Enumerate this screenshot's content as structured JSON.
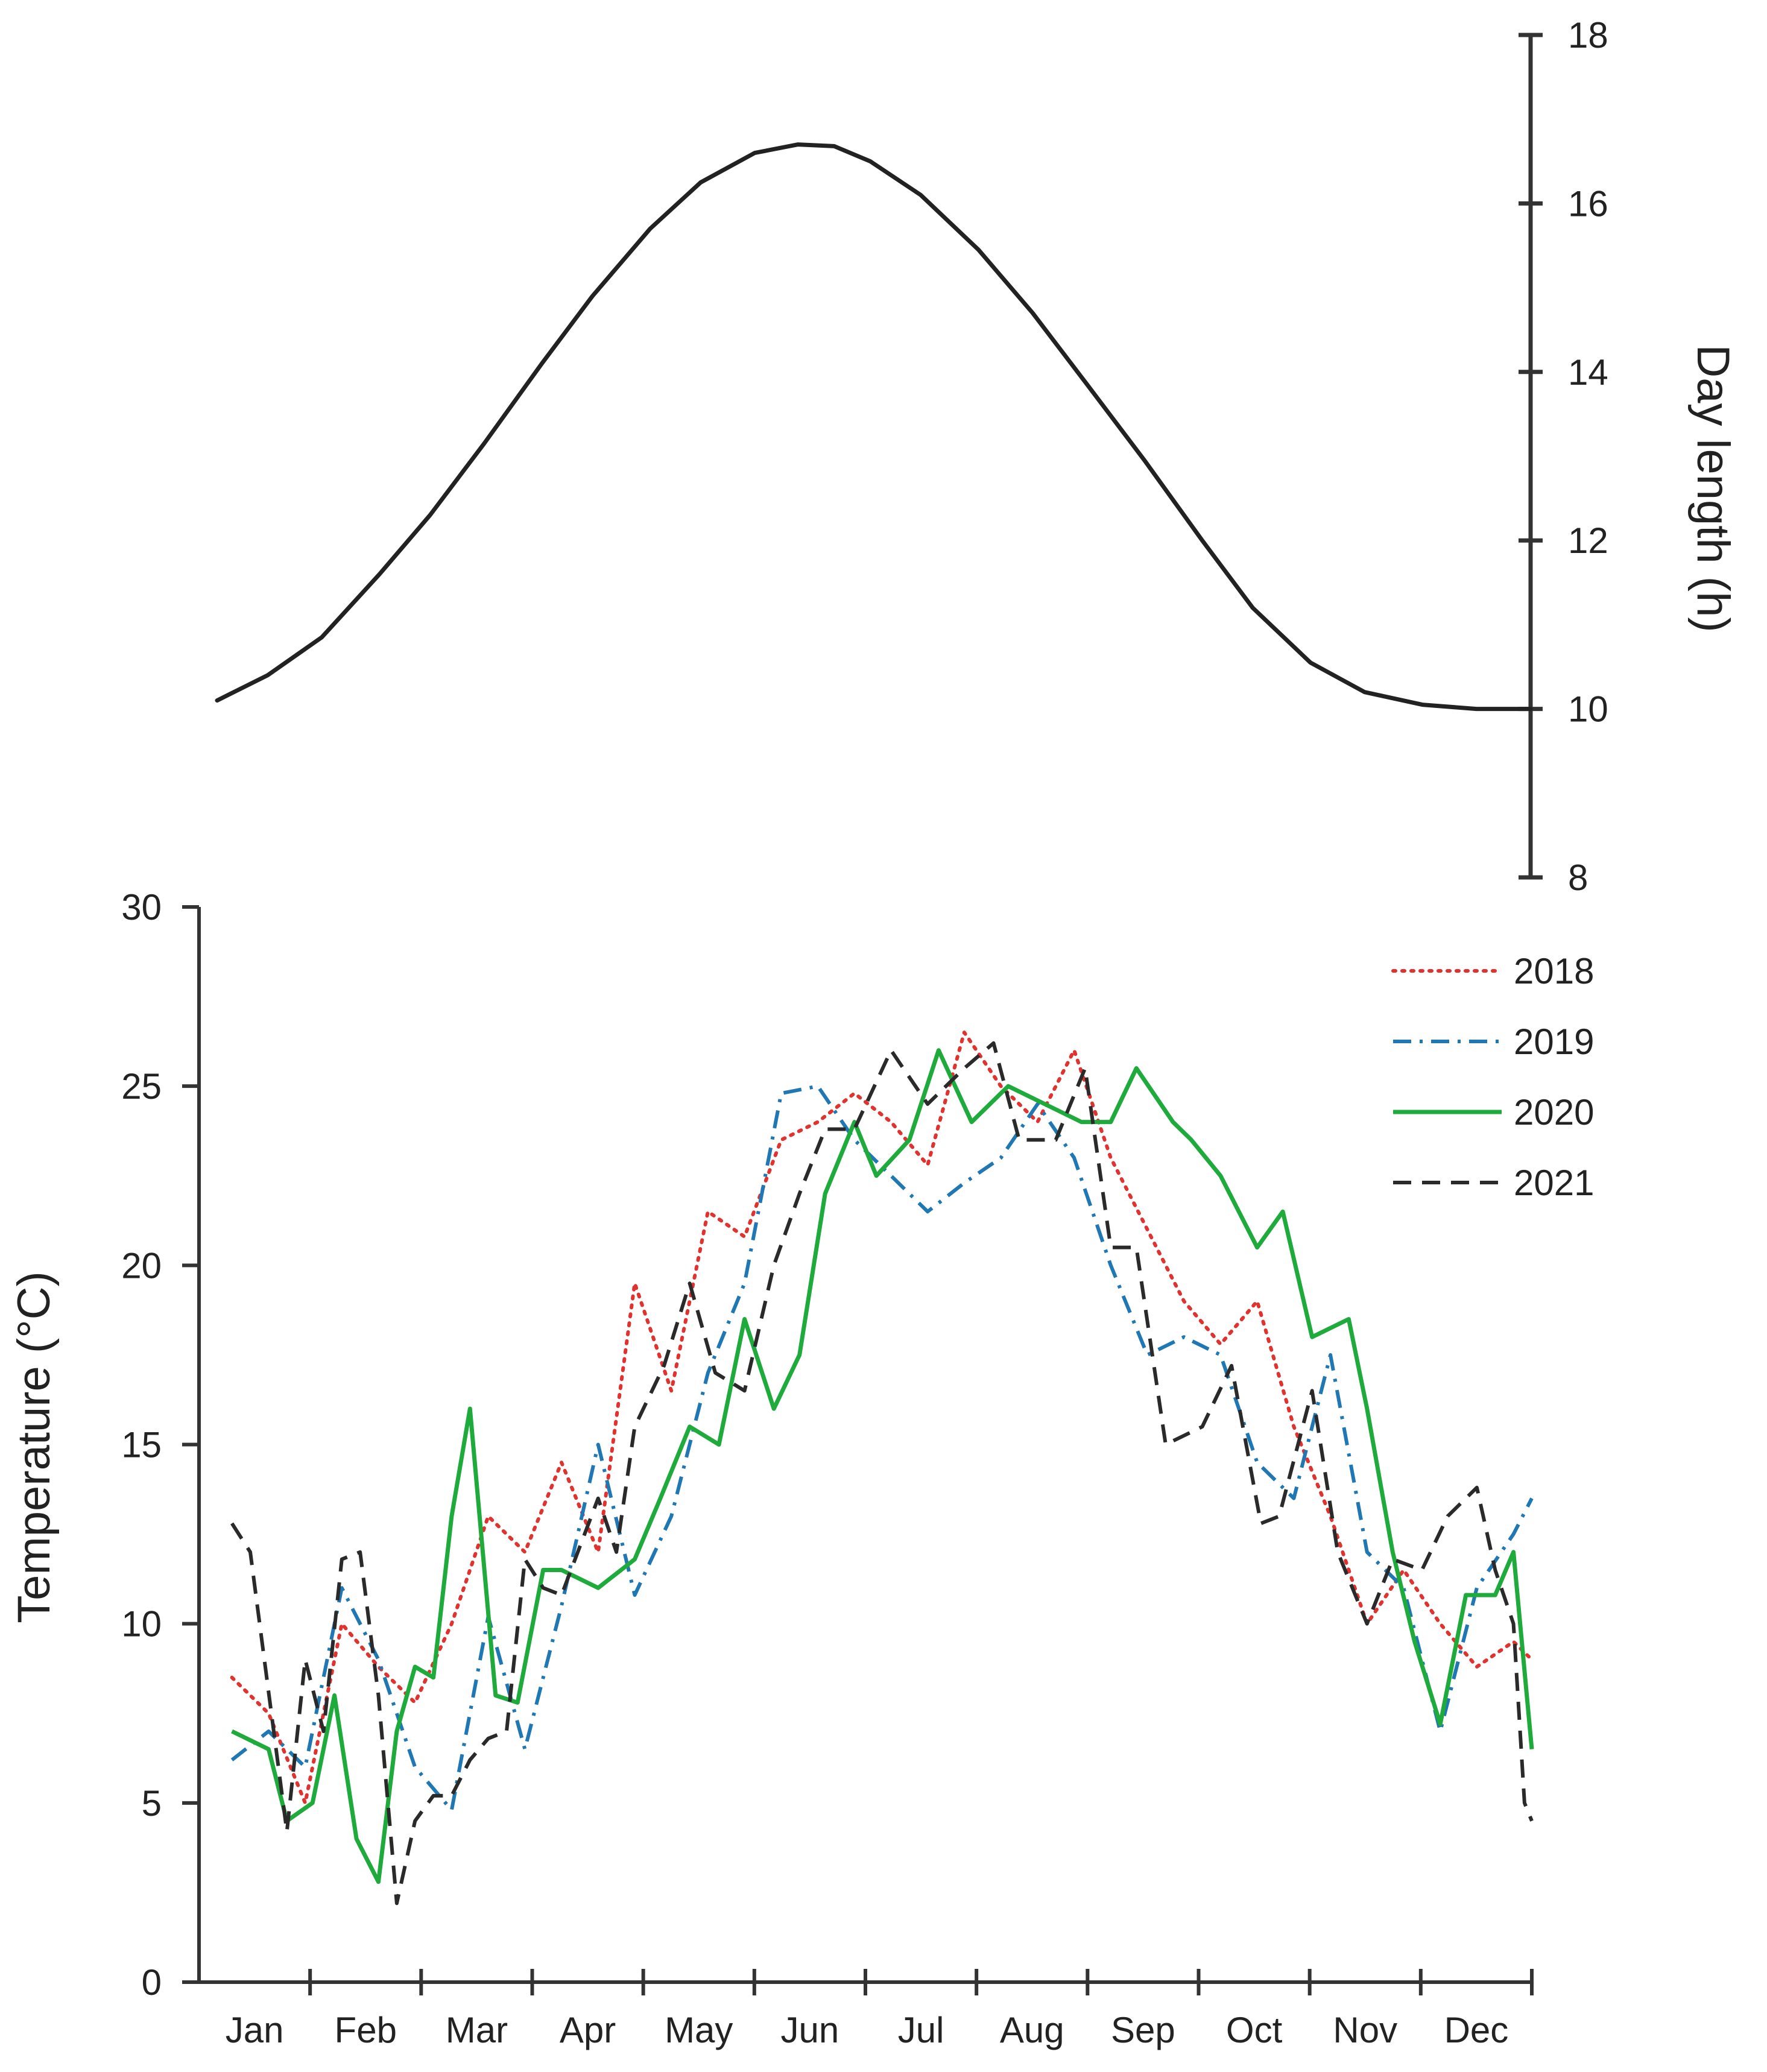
{
  "chart_data": [
    {
      "type": "line",
      "ylabel": "Day length  (h)",
      "ylim": [
        8,
        18
      ],
      "yticks": [
        8,
        10,
        12,
        14,
        16,
        18
      ],
      "y_axis_side": "right",
      "x_domain": [
        1,
        365
      ],
      "series": [
        {
          "color": "#222222",
          "x": [
            1,
            15,
            30,
            46,
            60,
            75,
            91,
            105,
            121,
            135,
            150,
            162,
            172,
            182,
            196,
            212,
            227,
            243,
            258,
            274,
            288,
            304,
            319,
            335,
            350,
            357,
            365
          ],
          "values": [
            10.1,
            10.4,
            10.85,
            11.6,
            12.3,
            13.15,
            14.1,
            14.9,
            15.7,
            16.25,
            16.6,
            16.7,
            16.68,
            16.5,
            16.1,
            15.45,
            14.7,
            13.8,
            12.95,
            12.0,
            11.2,
            10.55,
            10.2,
            10.05,
            10.0,
            10.0,
            10.0
          ]
        }
      ]
    },
    {
      "type": "line",
      "ylabel": "Temperature  (°C)",
      "ylim": [
        0,
        30
      ],
      "yticks": [
        0,
        5,
        10,
        15,
        20,
        25,
        30
      ],
      "categories": [
        "Jan",
        "Feb",
        "Mar",
        "Apr",
        "May",
        "Jun",
        "Jul",
        "Aug",
        "Sep",
        "Oct",
        "Nov",
        "Dec"
      ],
      "x_domain": [
        1,
        365
      ],
      "legend_position": "top-right",
      "series": [
        {
          "name": "2018",
          "color": "#e0322f",
          "dash": "dotted",
          "x": [
            10,
            20,
            30,
            40,
            50,
            60,
            70,
            80,
            90,
            100,
            110,
            120,
            130,
            140,
            150,
            160,
            170,
            180,
            190,
            200,
            210,
            220,
            230,
            240,
            250,
            260,
            270,
            280,
            290,
            300,
            310,
            320,
            330,
            340,
            350,
            360,
            365
          ],
          "values": [
            8.5,
            7.5,
            5.0,
            10.0,
            8.8,
            7.8,
            10.0,
            13.0,
            12.0,
            14.5,
            12.0,
            19.5,
            16.5,
            21.5,
            20.8,
            23.5,
            24.0,
            24.8,
            24.0,
            22.8,
            26.5,
            25.0,
            24.0,
            26.0,
            23.0,
            21.0,
            19.0,
            17.8,
            19.0,
            15.5,
            13.0,
            10.0,
            11.5,
            10.0,
            8.8,
            9.5,
            9.0
          ]
        },
        {
          "name": "2019",
          "color": "#1f77b4",
          "dash": "dashdot",
          "x": [
            10,
            20,
            30,
            40,
            50,
            60,
            70,
            80,
            90,
            100,
            110,
            120,
            130,
            140,
            150,
            160,
            170,
            180,
            190,
            200,
            210,
            220,
            230,
            240,
            250,
            260,
            270,
            280,
            290,
            300,
            310,
            320,
            330,
            340,
            350,
            360,
            365
          ],
          "values": [
            6.2,
            7.0,
            6.0,
            11.0,
            9.0,
            6.0,
            4.8,
            10.2,
            6.5,
            10.5,
            15.0,
            10.8,
            13.0,
            17.0,
            19.5,
            24.8,
            25.0,
            23.5,
            22.5,
            21.5,
            22.3,
            23.0,
            24.5,
            23.0,
            20.0,
            17.5,
            18.0,
            17.5,
            14.5,
            13.5,
            17.5,
            12.0,
            11.0,
            7.0,
            11.0,
            12.5,
            13.5
          ]
        },
        {
          "name": "2020",
          "color": "#1faa3c",
          "dash": "solid",
          "x": [
            10,
            20,
            25,
            32,
            38,
            44,
            50,
            55,
            60,
            65,
            70,
            75,
            82,
            88,
            95,
            100,
            110,
            120,
            127,
            135,
            143,
            150,
            158,
            165,
            172,
            180,
            186,
            195,
            203,
            212,
            222,
            232,
            242,
            250,
            257,
            267,
            272,
            280,
            290,
            297,
            305,
            315,
            320,
            327,
            333,
            340,
            347,
            355,
            360,
            365
          ],
          "values": [
            7.0,
            6.5,
            4.5,
            5.0,
            8.0,
            4.0,
            2.8,
            7.0,
            8.8,
            8.5,
            13.0,
            16.0,
            8.0,
            7.8,
            11.5,
            11.5,
            11.0,
            11.8,
            13.5,
            15.5,
            15.0,
            18.5,
            16.0,
            17.5,
            22.0,
            24.0,
            22.5,
            23.5,
            26.0,
            24.0,
            25.0,
            24.5,
            24.0,
            24.0,
            25.5,
            24.0,
            23.5,
            22.5,
            20.5,
            21.5,
            18.0,
            18.5,
            16.0,
            12.0,
            9.5,
            7.2,
            10.8,
            10.8,
            12.0,
            6.5
          ]
        },
        {
          "name": "2021",
          "color": "#2a2a2a",
          "dash": "dashed",
          "x": [
            10,
            15,
            25,
            30,
            35,
            40,
            45,
            50,
            55,
            60,
            65,
            70,
            75,
            80,
            85,
            90,
            95,
            100,
            110,
            115,
            120,
            128,
            135,
            142,
            150,
            158,
            165,
            172,
            180,
            190,
            200,
            210,
            218,
            225,
            235,
            243,
            250,
            257,
            265,
            275,
            283,
            291,
            296,
            305,
            312,
            320,
            327,
            335,
            342,
            350,
            355,
            360,
            363,
            365
          ],
          "values": [
            12.8,
            12.0,
            4.2,
            9.0,
            7.0,
            11.8,
            12.0,
            8.0,
            2.2,
            4.5,
            5.2,
            5.2,
            6.2,
            6.8,
            7.0,
            11.8,
            11.0,
            10.8,
            13.5,
            12.0,
            15.5,
            17.2,
            19.5,
            17.0,
            16.5,
            20.0,
            22.0,
            23.8,
            23.8,
            26.0,
            24.5,
            25.5,
            26.2,
            23.5,
            23.5,
            25.5,
            20.5,
            20.5,
            15.0,
            15.5,
            17.2,
            12.8,
            13.0,
            16.5,
            12.0,
            10.0,
            11.8,
            11.5,
            13.0,
            13.8,
            11.5,
            10.0,
            5.0,
            4.5
          ]
        }
      ]
    }
  ]
}
